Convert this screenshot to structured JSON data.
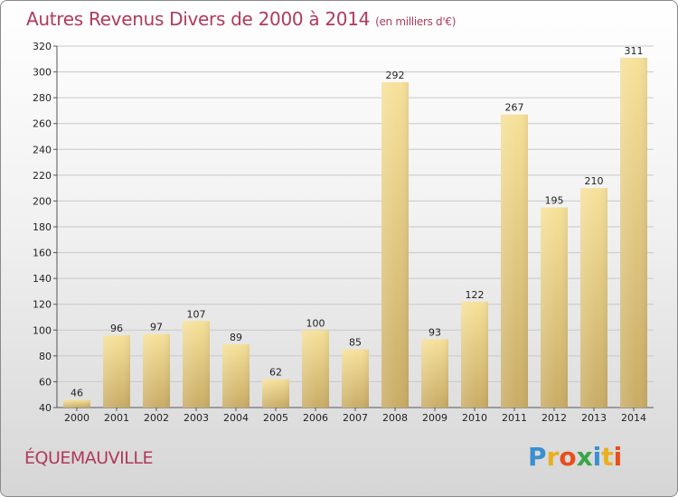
{
  "title": "Autres Revenus Divers de 2000 à 2014",
  "title_unit": "(en milliers d'€)",
  "commune": "ÉQUEMAUVILLE",
  "logo": {
    "letters": [
      "P",
      "r",
      "o",
      "x",
      "i",
      "t",
      "i"
    ],
    "colors": [
      "#3a8fd0",
      "#e8b020",
      "#e84e1b",
      "#3aa54a",
      "#3a8fd0",
      "#e8b020",
      "#e84e1b"
    ]
  },
  "colors": {
    "accent": "#b03a5b",
    "bar_top": "#f6e19a",
    "bar_bottom": "#c9ac66"
  },
  "chart_data": {
    "type": "bar",
    "categories": [
      "2000",
      "2001",
      "2002",
      "2003",
      "2004",
      "2005",
      "2006",
      "2007",
      "2008",
      "2009",
      "2010",
      "2011",
      "2012",
      "2013",
      "2014"
    ],
    "values": [
      46,
      96,
      97,
      107,
      89,
      62,
      100,
      85,
      292,
      93,
      122,
      267,
      195,
      210,
      311
    ],
    "ylim": [
      40,
      320
    ],
    "yticks": [
      40,
      60,
      80,
      100,
      120,
      140,
      160,
      180,
      200,
      220,
      240,
      260,
      280,
      300,
      320
    ],
    "grid": true
  }
}
